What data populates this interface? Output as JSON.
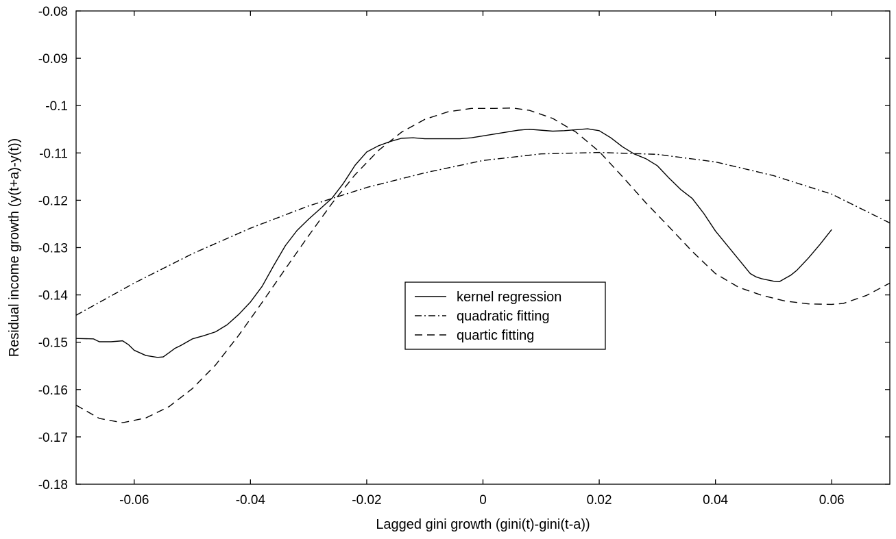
{
  "chart_data": {
    "type": "line",
    "title": "",
    "xlabel": "Lagged gini growth (gini(t)-gini(t-a))",
    "ylabel": "Residual income growth (y(t+a)-y(t))",
    "xlim": [
      -0.07,
      0.07
    ],
    "ylim": [
      -0.18,
      -0.08
    ],
    "xticks": [
      -0.06,
      -0.04,
      -0.02,
      0,
      0.02,
      0.04,
      0.06
    ],
    "xtick_labels": [
      "-0.06",
      "-0.04",
      "-0.02",
      "0",
      "0.02",
      "0.04",
      "0.06"
    ],
    "yticks": [
      -0.18,
      -0.17,
      -0.16,
      -0.15,
      -0.14,
      -0.13,
      -0.12,
      -0.11,
      -0.1,
      -0.09,
      -0.08
    ],
    "ytick_labels": [
      "-0.18",
      "-0.17",
      "-0.16",
      "-0.15",
      "-0.14",
      "-0.13",
      "-0.12",
      "-0.11",
      "-0.1",
      "-0.09",
      "-0.08"
    ],
    "grid": false,
    "legend_position": "center",
    "series": [
      {
        "name": "kernel regression",
        "color": "#000000",
        "line_style": "solid",
        "x": [
          -0.07,
          -0.067,
          -0.066,
          -0.064,
          -0.062,
          -0.061,
          -0.06,
          -0.058,
          -0.056,
          -0.055,
          -0.054,
          -0.053,
          -0.052,
          -0.05,
          -0.048,
          -0.046,
          -0.044,
          -0.042,
          -0.04,
          -0.038,
          -0.036,
          -0.034,
          -0.032,
          -0.03,
          -0.028,
          -0.026,
          -0.024,
          -0.022,
          -0.02,
          -0.018,
          -0.016,
          -0.014,
          -0.012,
          -0.01,
          -0.008,
          -0.006,
          -0.004,
          -0.002,
          0,
          0.002,
          0.004,
          0.006,
          0.008,
          0.01,
          0.012,
          0.014,
          0.016,
          0.018,
          0.02,
          0.022,
          0.024,
          0.026,
          0.028,
          0.03,
          0.032,
          0.034,
          0.036,
          0.038,
          0.04,
          0.042,
          0.044,
          0.046,
          0.047,
          0.048,
          0.05,
          0.051,
          0.052,
          0.053,
          0.054,
          0.056,
          0.058,
          0.06
        ],
        "y": [
          -0.1492,
          -0.1493,
          -0.1499,
          -0.1499,
          -0.1497,
          -0.1505,
          -0.1517,
          -0.1528,
          -0.1532,
          -0.1531,
          -0.1522,
          -0.1513,
          -0.1507,
          -0.1493,
          -0.1486,
          -0.1478,
          -0.1463,
          -0.1441,
          -0.1415,
          -0.1382,
          -0.1338,
          -0.1296,
          -0.1264,
          -0.124,
          -0.1218,
          -0.1196,
          -0.1164,
          -0.1126,
          -0.1098,
          -0.1085,
          -0.1076,
          -0.1069,
          -0.1068,
          -0.107,
          -0.107,
          -0.107,
          -0.107,
          -0.1068,
          -0.1064,
          -0.106,
          -0.1056,
          -0.1052,
          -0.105,
          -0.1052,
          -0.1054,
          -0.1053,
          -0.1051,
          -0.1049,
          -0.1053,
          -0.1068,
          -0.1087,
          -0.1102,
          -0.1112,
          -0.1127,
          -0.1153,
          -0.1177,
          -0.1196,
          -0.1228,
          -0.1265,
          -0.1295,
          -0.1325,
          -0.1355,
          -0.1362,
          -0.1366,
          -0.1371,
          -0.1372,
          -0.1365,
          -0.1358,
          -0.1348,
          -0.1322,
          -0.1293,
          -0.1262
        ]
      },
      {
        "name": "quadratic fitting",
        "color": "#000000",
        "line_style": "dashdot",
        "x": [
          -0.07,
          -0.06,
          -0.05,
          -0.04,
          -0.03,
          -0.02,
          -0.01,
          0,
          0.01,
          0.02,
          0.03,
          0.04,
          0.05,
          0.06,
          0.07
        ],
        "y": [
          -0.1443,
          -0.1375,
          -0.1313,
          -0.1259,
          -0.1212,
          -0.1173,
          -0.1142,
          -0.1116,
          -0.1102,
          -0.1099,
          -0.1103,
          -0.1119,
          -0.1148,
          -0.1187,
          -0.1248
        ]
      },
      {
        "name": "quartic fitting",
        "color": "#000000",
        "line_style": "dashed",
        "x": [
          -0.07,
          -0.066,
          -0.062,
          -0.058,
          -0.054,
          -0.05,
          -0.046,
          -0.042,
          -0.038,
          -0.034,
          -0.03,
          -0.026,
          -0.022,
          -0.018,
          -0.014,
          -0.01,
          -0.006,
          -0.002,
          0.002,
          0.005,
          0.008,
          0.012,
          0.016,
          0.02,
          0.024,
          0.028,
          0.032,
          0.036,
          0.04,
          0.044,
          0.048,
          0.052,
          0.056,
          0.06,
          0.062,
          0.066,
          0.07
        ],
        "y": [
          -0.1633,
          -0.1661,
          -0.167,
          -0.166,
          -0.1636,
          -0.1598,
          -0.1548,
          -0.1485,
          -0.1416,
          -0.1345,
          -0.1275,
          -0.1207,
          -0.1146,
          -0.1095,
          -0.1056,
          -0.1029,
          -0.1013,
          -0.1006,
          -0.1006,
          -0.1005,
          -0.101,
          -0.1027,
          -0.1056,
          -0.1097,
          -0.115,
          -0.1205,
          -0.1256,
          -0.1308,
          -0.1355,
          -0.1384,
          -0.1401,
          -0.1413,
          -0.1419,
          -0.142,
          -0.1418,
          -0.1401,
          -0.1375
        ]
      }
    ]
  }
}
